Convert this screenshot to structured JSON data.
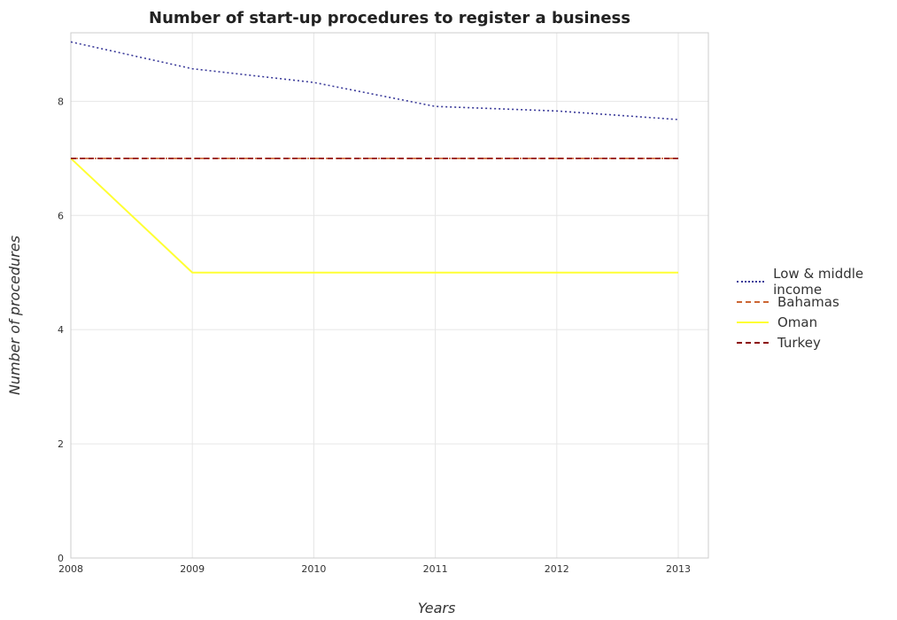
{
  "chart_data": {
    "type": "line",
    "title": "Number of start-up procedures to register a business",
    "xlabel": "Years",
    "ylabel": "Number of procedures",
    "x": [
      "2008",
      "2009",
      "2010",
      "2011",
      "2012",
      "2013"
    ],
    "ylim": [
      0,
      9.2
    ],
    "yticks": [
      0,
      2,
      4,
      6,
      8
    ],
    "grid": true,
    "legend_position": "right",
    "series": [
      {
        "name": "Low & middle income",
        "color": "#3b3b9a",
        "style": "dotted",
        "values": [
          9.04,
          8.57,
          8.33,
          7.91,
          7.83,
          7.68
        ]
      },
      {
        "name": "Bahamas",
        "color": "#cc6633",
        "style": "dashdot",
        "values": [
          7,
          7,
          7,
          7,
          7,
          7
        ]
      },
      {
        "name": "Oman",
        "color": "#ffff33",
        "style": "solid",
        "values": [
          7,
          5,
          5,
          5,
          5,
          5
        ]
      },
      {
        "name": "Turkey",
        "color": "#8b0000",
        "style": "dashed",
        "values": [
          7,
          7,
          7,
          7,
          7,
          7
        ]
      }
    ]
  }
}
